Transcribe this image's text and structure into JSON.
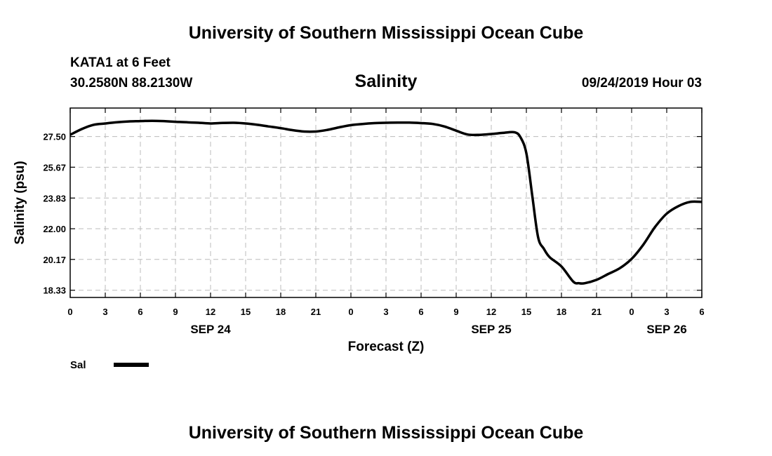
{
  "page": {
    "header": "University of Southern Mississippi Ocean Cube",
    "footer": "University of Southern Mississippi Ocean Cube",
    "station": "KATA1 at 6 Feet",
    "coordinates": "30.2580N 88.2130W",
    "run_time": "09/24/2019 Hour 03"
  },
  "chart_data": {
    "type": "line",
    "title": "Salinity",
    "xlabel": "Forecast (Z)",
    "ylabel": "Salinity (psu)",
    "x_unit": "forecast hours from 00Z SEP 24",
    "xlim": [
      0,
      54
    ],
    "ylim": [
      17.9,
      29.2
    ],
    "yticks": [
      18.33,
      20.17,
      22.0,
      23.83,
      25.67,
      27.5
    ],
    "ytick_labels": [
      "18.33",
      "20.17",
      "22.00",
      "23.83",
      "25.67",
      "27.50"
    ],
    "xticks": [
      0,
      3,
      6,
      9,
      12,
      15,
      18,
      21,
      24,
      27,
      30,
      33,
      36,
      39,
      42,
      45,
      48,
      51,
      54
    ],
    "xtick_labels": [
      "0",
      "3",
      "6",
      "9",
      "12",
      "15",
      "18",
      "21",
      "0",
      "3",
      "6",
      "9",
      "12",
      "15",
      "18",
      "21",
      "0",
      "3",
      "6"
    ],
    "date_labels": [
      {
        "x": 12,
        "label": "SEP 24"
      },
      {
        "x": 36,
        "label": "SEP 25"
      },
      {
        "x": 51,
        "label": "SEP 26"
      }
    ],
    "grid": true,
    "legend_position": "bottom-left",
    "series": [
      {
        "name": "Sal",
        "color": "#000000",
        "x": [
          0,
          1,
          2,
          3,
          4,
          5,
          6,
          7,
          8,
          9,
          10,
          11,
          12,
          13,
          14,
          15,
          16,
          17,
          18,
          19,
          20,
          21,
          22,
          23,
          24,
          25,
          26,
          27,
          28,
          29,
          30,
          31,
          32,
          33,
          34,
          35,
          36,
          37,
          38,
          38.5,
          39,
          39.5,
          40,
          40.5,
          41,
          42,
          43,
          43.5,
          44,
          45,
          46,
          47,
          48,
          49,
          50,
          51,
          52,
          53,
          54
        ],
        "values": [
          27.6,
          27.95,
          28.2,
          28.28,
          28.35,
          28.4,
          28.42,
          28.44,
          28.42,
          28.38,
          28.35,
          28.32,
          28.28,
          28.31,
          28.32,
          28.28,
          28.2,
          28.1,
          28.0,
          27.88,
          27.8,
          27.8,
          27.9,
          28.05,
          28.18,
          28.25,
          28.3,
          28.32,
          28.33,
          28.33,
          28.3,
          28.25,
          28.1,
          27.85,
          27.62,
          27.6,
          27.65,
          27.72,
          27.75,
          27.45,
          26.5,
          24.0,
          21.5,
          20.8,
          20.3,
          19.75,
          18.85,
          18.75,
          18.75,
          18.95,
          19.3,
          19.65,
          20.2,
          21.05,
          22.1,
          22.9,
          23.35,
          23.6,
          23.6
        ]
      }
    ]
  }
}
